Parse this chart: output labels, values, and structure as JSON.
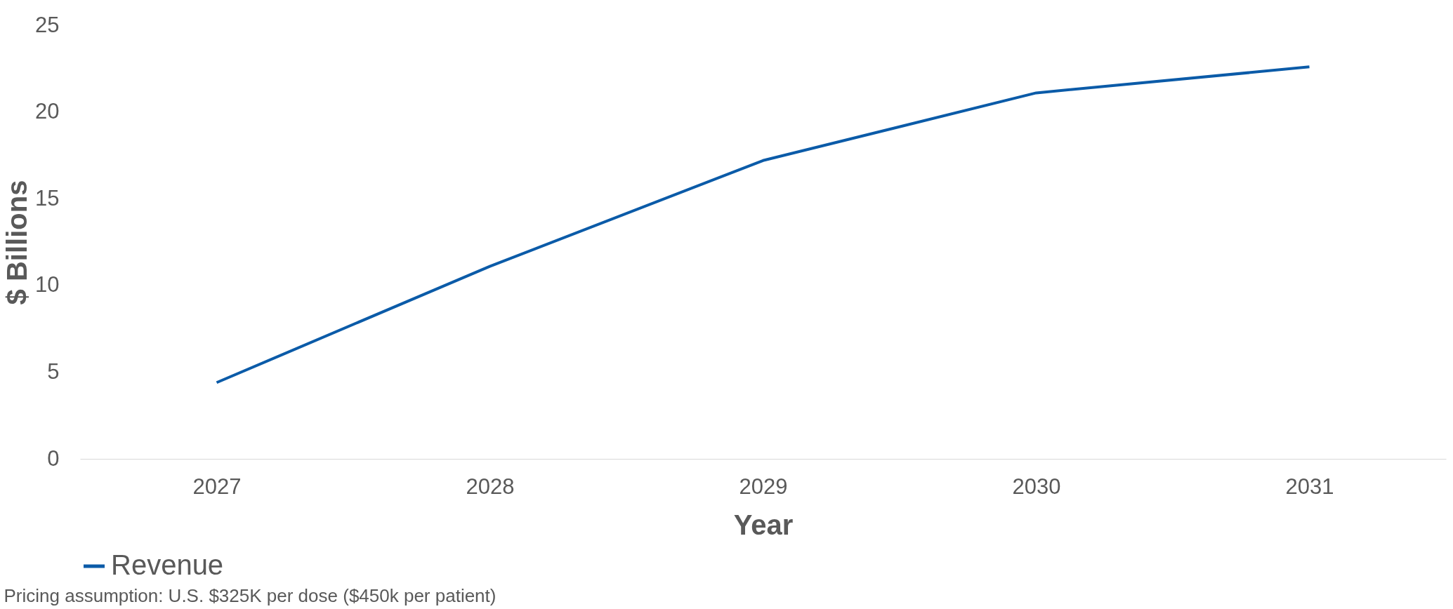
{
  "chart_data": {
    "type": "line",
    "xlabel": "Year",
    "ylabel": "$ Billions",
    "categories": [
      "2027",
      "2028",
      "2029",
      "2030",
      "2031"
    ],
    "series": [
      {
        "name": "Revenue",
        "color": "#0b5ba8",
        "values": [
          4.4,
          11.1,
          17.2,
          21.1,
          22.6
        ]
      }
    ],
    "ylim": [
      0,
      25
    ],
    "yticks": [
      0,
      5,
      10,
      15,
      20,
      25
    ],
    "grid": false,
    "legend": "bottom",
    "marker": "none",
    "line_style": "solid",
    "annotations": [
      "Pricing assumption: U.S. $325K per dose ($450k per patient)"
    ]
  }
}
